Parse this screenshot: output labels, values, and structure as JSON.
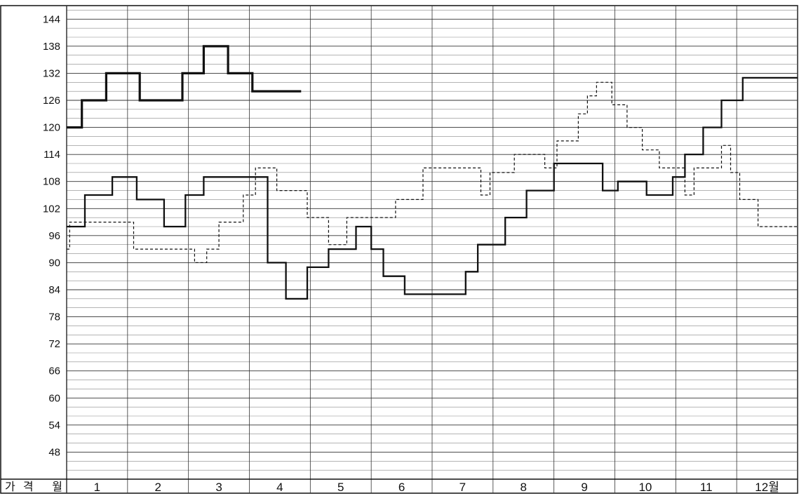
{
  "chart_data": {
    "type": "line",
    "step": true,
    "ylim": [
      42,
      147
    ],
    "y_ticks": [
      144,
      138,
      132,
      126,
      120,
      114,
      108,
      102,
      96,
      90,
      84,
      78,
      72,
      66,
      60,
      54,
      48
    ],
    "grid": true,
    "x_axis": {
      "label": "가격 월",
      "categories": [
        "1",
        "2",
        "3",
        "4",
        "5",
        "6",
        "7",
        "8",
        "9",
        "10",
        "11",
        "12월"
      ],
      "range": [
        0,
        12
      ]
    },
    "series": [
      {
        "style": "thick-solid",
        "x": [
          0,
          0.25,
          0.65,
          1.2,
          1.9,
          2.25,
          2.65,
          3.05,
          3.4,
          3.85
        ],
        "y": [
          120,
          126,
          132,
          126,
          132,
          138,
          132,
          128,
          128,
          128
        ]
      },
      {
        "style": "dashed",
        "x": [
          0,
          0.05,
          0.95,
          1.1,
          2.1,
          2.3,
          2.5,
          2.9,
          3.1,
          3.45,
          3.95,
          4.3,
          4.6,
          5.4,
          5.85,
          6.8,
          6.95,
          7.35,
          7.85,
          8.05,
          8.4,
          8.55,
          8.7,
          8.95,
          9.2,
          9.45,
          9.73,
          10.15,
          10.3,
          10.75,
          10.9,
          11.05,
          11.35
        ],
        "y": [
          93,
          99,
          99,
          93,
          90,
          93,
          99,
          105,
          111,
          106,
          100,
          94,
          100,
          104,
          111,
          105,
          110,
          114,
          111,
          117,
          123,
          127,
          130,
          125,
          120,
          115,
          111,
          105,
          111,
          116,
          110,
          104,
          98
        ]
      },
      {
        "style": "solid",
        "x": [
          0,
          0.3,
          0.75,
          1.15,
          1.6,
          1.95,
          2.25,
          2.5,
          3.3,
          3.6,
          3.95,
          4.3,
          4.75,
          5.0,
          5.2,
          5.55,
          6.0,
          6.55,
          6.75,
          7.2,
          7.55,
          8.0,
          8.8,
          9.05,
          9.52,
          9.95,
          10.15,
          10.45,
          10.75,
          11.1
        ],
        "y": [
          98,
          105,
          109,
          104,
          98,
          105,
          109,
          109,
          90,
          82,
          89,
          93,
          98,
          93,
          87,
          83,
          83,
          88,
          94,
          100,
          106,
          112,
          106,
          108,
          105,
          109,
          114,
          120,
          126,
          131
        ]
      }
    ]
  }
}
